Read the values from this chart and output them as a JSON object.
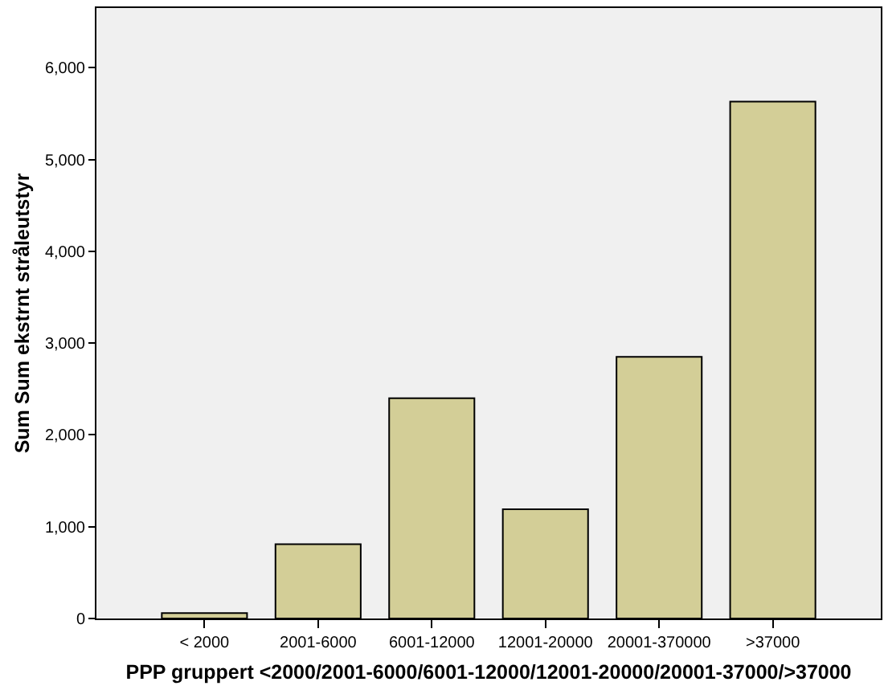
{
  "chart_data": {
    "type": "bar",
    "xlabel": "PPP gruppert <2000/2001-6000/6001-12000/12001-20000/20001-37000/>37000",
    "ylabel": "Sum Sum ekstrnt stråleutstyr",
    "categories": [
      "< 2000",
      "2001-6000",
      "6001-12000",
      "12001-20000",
      "20001-370000",
      ">37000"
    ],
    "values": [
      60,
      810,
      2400,
      1190,
      2850,
      5630
    ],
    "color": "#d3ce97",
    "ylim": [
      0,
      6650
    ],
    "yticks": [
      {
        "value": 0,
        "label": "0"
      },
      {
        "value": 1000,
        "label": "1,000"
      },
      {
        "value": 2000,
        "label": "2,000"
      },
      {
        "value": 3000,
        "label": "3,000"
      },
      {
        "value": 4000,
        "label": "4,000"
      },
      {
        "value": 5000,
        "label": "5,000"
      },
      {
        "value": 6000,
        "label": "6,000"
      }
    ],
    "grid": false
  }
}
